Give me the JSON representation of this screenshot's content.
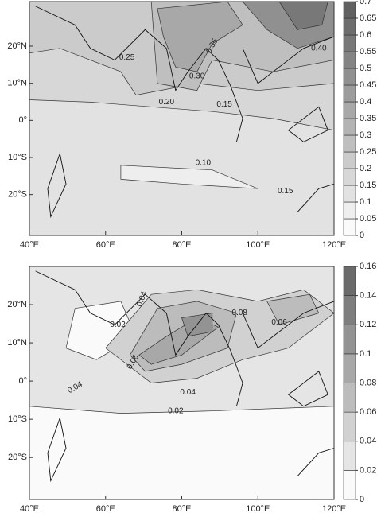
{
  "panels": [
    {
      "xlim": [
        40,
        120
      ],
      "ylim": [
        -31,
        32
      ],
      "xticks": [
        {
          "value": 40,
          "label": "40°E"
        },
        {
          "value": 60,
          "label": "60°E"
        },
        {
          "value": 80,
          "label": "80°E"
        },
        {
          "value": 100,
          "label": "100°E"
        },
        {
          "value": 120,
          "label": "120°E"
        }
      ],
      "yticks": [
        {
          "value": 20,
          "label": "20°N"
        },
        {
          "value": 10,
          "label": "10°N"
        },
        {
          "value": 0,
          "label": "0°"
        },
        {
          "value": -10,
          "label": "10°S"
        },
        {
          "value": -20,
          "label": "20°S"
        }
      ],
      "colorbar": [
        0,
        0.05,
        0.1,
        0.15,
        0.2,
        0.25,
        0.3,
        0.35,
        0.4,
        0.45,
        0.5,
        0.55,
        0.6,
        0.65,
        0.7
      ],
      "contour_labels": [
        "0.25",
        "0.35",
        "0.30",
        "0.20",
        "0.15",
        "0.10",
        "0.15",
        "0.40"
      ]
    },
    {
      "xlim": [
        40,
        120
      ],
      "ylim": [
        -31,
        30
      ],
      "xticks": [
        {
          "value": 40,
          "label": "40°E"
        },
        {
          "value": 60,
          "label": "60°E"
        },
        {
          "value": 80,
          "label": "80°E"
        },
        {
          "value": 100,
          "label": "100°E"
        },
        {
          "value": 120,
          "label": "120°E"
        }
      ],
      "yticks": [
        {
          "value": 20,
          "label": "20°N"
        },
        {
          "value": 10,
          "label": "10°N"
        },
        {
          "value": 0,
          "label": "0°"
        },
        {
          "value": -10,
          "label": "10°S"
        },
        {
          "value": -20,
          "label": "20°S"
        }
      ],
      "colorbar": [
        0,
        0.02,
        0.04,
        0.06,
        0.08,
        0.1,
        0.12,
        0.14,
        0.16
      ],
      "contour_labels": [
        "0.04",
        "0.02",
        "0.06",
        "0.08",
        "0.06",
        "0.04",
        "0.04",
        "0.02"
      ]
    }
  ]
}
